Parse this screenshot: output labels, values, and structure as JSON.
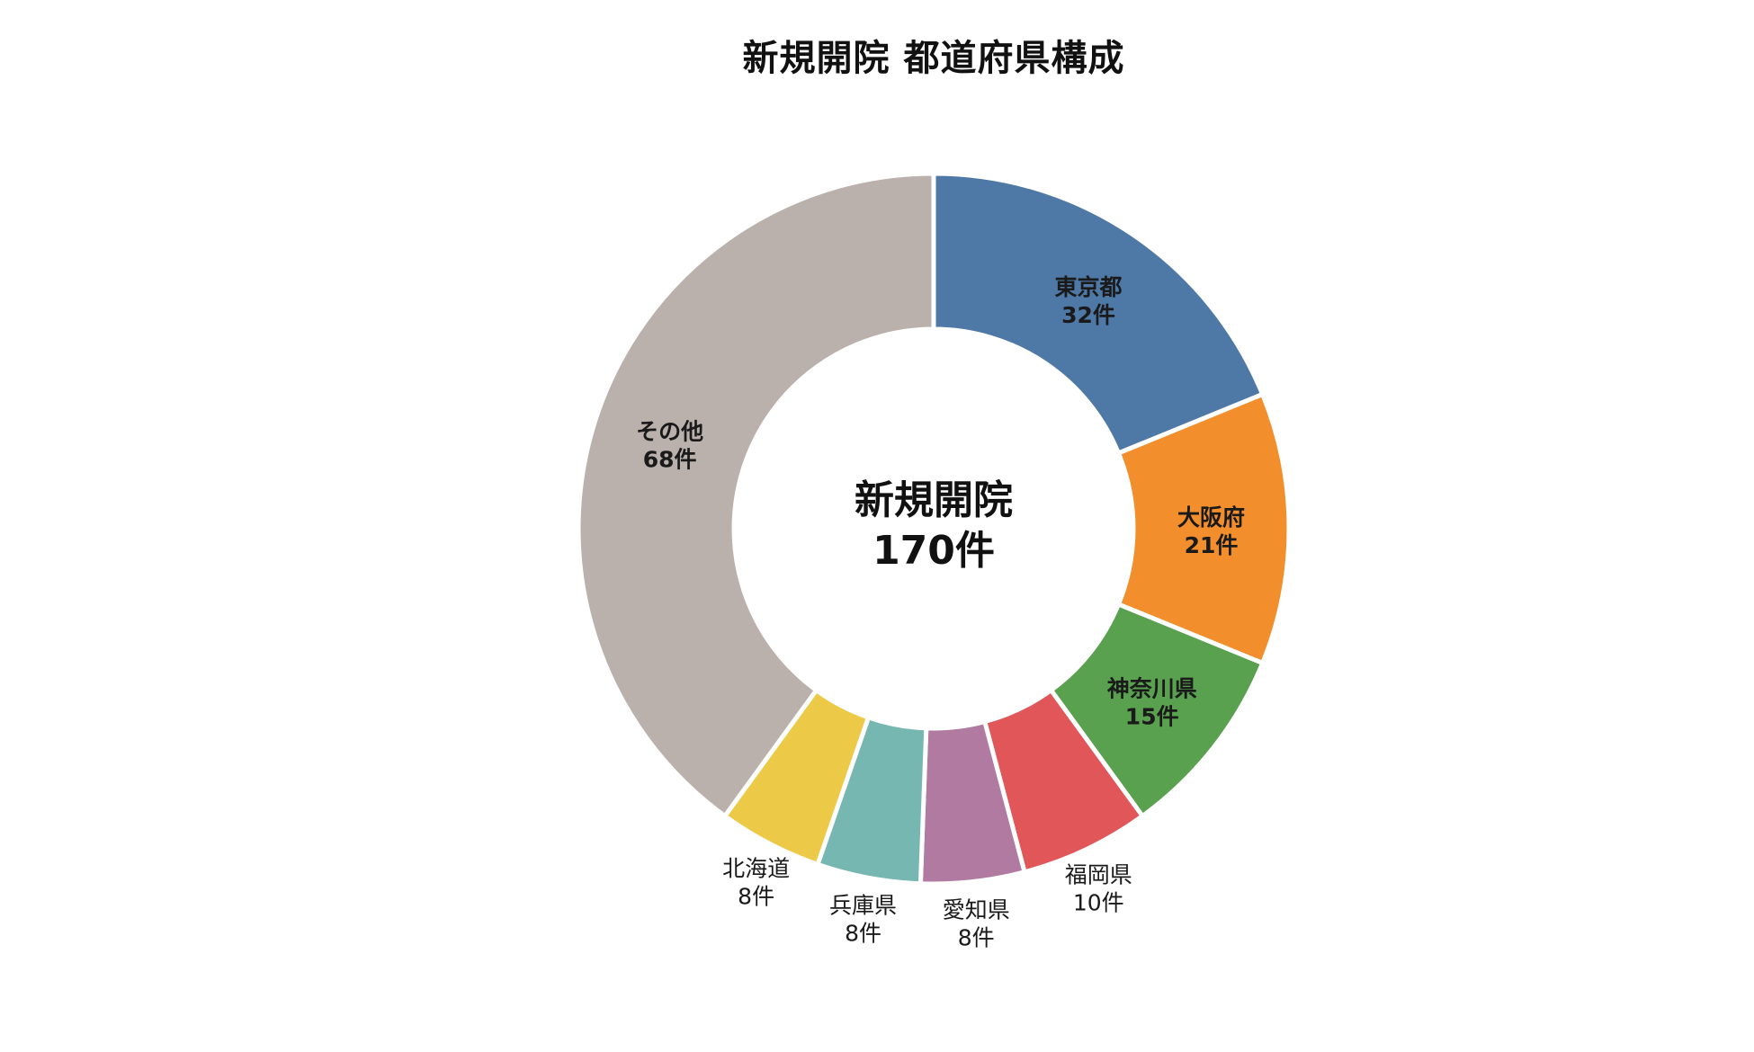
{
  "chart_data": {
    "type": "pie",
    "subtype": "donut",
    "title": "新規開院 都道府県構成",
    "center_label": {
      "line1": "新規開院",
      "line2": "170件"
    },
    "categories": [
      "東京都",
      "大阪府",
      "神奈川県",
      "福岡県",
      "愛知県",
      "兵庫県",
      "北海道",
      "その他"
    ],
    "values": [
      32,
      21,
      15,
      10,
      8,
      8,
      8,
      68
    ],
    "value_labels": [
      "32件",
      "21件",
      "15件",
      "10件",
      "8件",
      "8件",
      "8件",
      "68件"
    ],
    "colors": [
      "#4e79a7",
      "#f28e2b",
      "#59a14f",
      "#e15759",
      "#b07aa1",
      "#76b7b2",
      "#edc948",
      "#bab0ac"
    ],
    "label_position": [
      "inside",
      "inside",
      "inside",
      "outside",
      "outside",
      "outside",
      "outside",
      "inside"
    ],
    "legend": "none"
  }
}
